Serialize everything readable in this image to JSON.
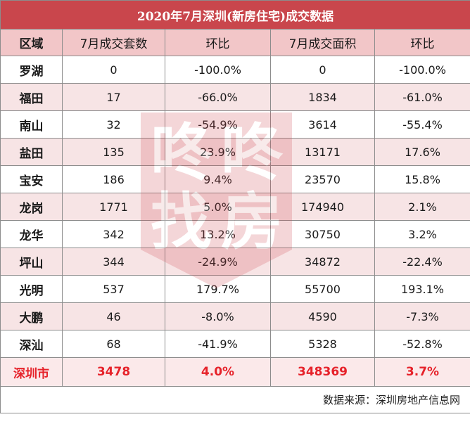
{
  "title": "2020年7月深圳(新房住宅)成交数据",
  "headers": [
    "区域",
    "7月成交套数",
    "环比",
    "7月成交面积",
    "环比"
  ],
  "rows": [
    {
      "region": "罗湖",
      "units": "0",
      "units_mom": "-100.0%",
      "area": "0",
      "area_mom": "-100.0%"
    },
    {
      "region": "福田",
      "units": "17",
      "units_mom": "-66.0%",
      "area": "1834",
      "area_mom": "-61.0%"
    },
    {
      "region": "南山",
      "units": "32",
      "units_mom": "-54.9%",
      "area": "3614",
      "area_mom": "-55.4%"
    },
    {
      "region": "盐田",
      "units": "135",
      "units_mom": "23.9%",
      "area": "13171",
      "area_mom": "17.6%"
    },
    {
      "region": "宝安",
      "units": "186",
      "units_mom": "9.4%",
      "area": "23570",
      "area_mom": "15.8%"
    },
    {
      "region": "龙岗",
      "units": "1771",
      "units_mom": "5.0%",
      "area": "174940",
      "area_mom": "2.1%"
    },
    {
      "region": "龙华",
      "units": "342",
      "units_mom": "13.2%",
      "area": "30750",
      "area_mom": "3.2%"
    },
    {
      "region": "坪山",
      "units": "344",
      "units_mom": "-24.9%",
      "area": "34872",
      "area_mom": "-22.4%"
    },
    {
      "region": "光明",
      "units": "537",
      "units_mom": "179.7%",
      "area": "55700",
      "area_mom": "193.1%"
    },
    {
      "region": "大鹏",
      "units": "46",
      "units_mom": "-8.0%",
      "area": "4590",
      "area_mom": "-7.3%"
    },
    {
      "region": "深汕",
      "units": "68",
      "units_mom": "-41.9%",
      "area": "5328",
      "area_mom": "-52.8%"
    }
  ],
  "total": {
    "region": "深圳市",
    "units": "3478",
    "units_mom": "4.0%",
    "area": "348369",
    "area_mom": "3.7%"
  },
  "source": "数据来源：深圳房地产信息网",
  "watermark": {
    "chars": [
      "咚",
      "咚",
      "找",
      "房"
    ],
    "color": "#d04a52"
  }
}
